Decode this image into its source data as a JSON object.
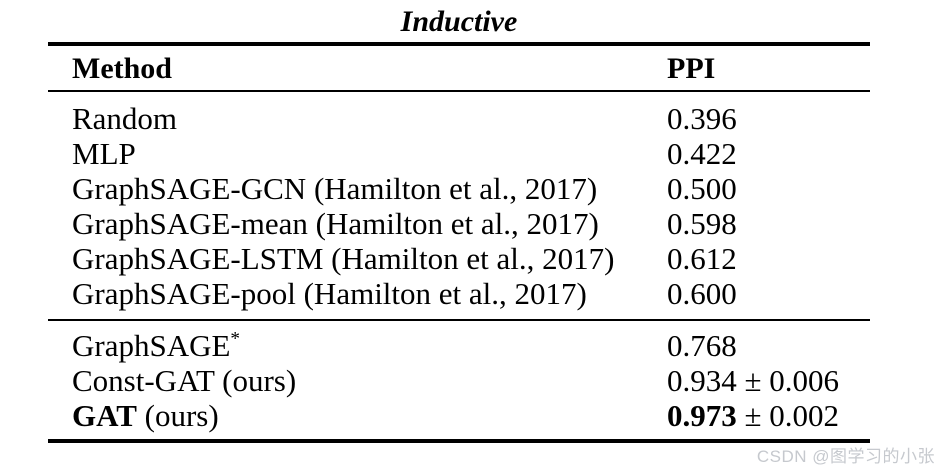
{
  "title": "Inductive",
  "watermark": "CSDN @图学习的小张",
  "colors": {
    "background": "#ffffff",
    "text": "#000000",
    "rule": "#000000",
    "watermark": "#c6c9ce"
  },
  "table": {
    "columns": [
      "Method",
      "PPI"
    ],
    "sections": [
      {
        "name": "baselines",
        "rows": [
          {
            "method_bold": "",
            "method": "Random",
            "method_sup": "",
            "ppi_bold": "",
            "ppi": "0.396"
          },
          {
            "method_bold": "",
            "method": "MLP",
            "method_sup": "",
            "ppi_bold": "",
            "ppi": "0.422"
          },
          {
            "method_bold": "",
            "method": "GraphSAGE-GCN (Hamilton et al., 2017)",
            "method_sup": "",
            "ppi_bold": "",
            "ppi": "0.500"
          },
          {
            "method_bold": "",
            "method": "GraphSAGE-mean (Hamilton et al., 2017)",
            "method_sup": "",
            "ppi_bold": "",
            "ppi": "0.598"
          },
          {
            "method_bold": "",
            "method": "GraphSAGE-LSTM (Hamilton et al., 2017)",
            "method_sup": "",
            "ppi_bold": "",
            "ppi": "0.612"
          },
          {
            "method_bold": "",
            "method": "GraphSAGE-pool (Hamilton et al., 2017)",
            "method_sup": "",
            "ppi_bold": "",
            "ppi": "0.600"
          }
        ]
      },
      {
        "name": "ours",
        "rows": [
          {
            "method_bold": "",
            "method": "GraphSAGE",
            "method_sup": "*",
            "ppi_bold": "",
            "ppi": "0.768"
          },
          {
            "method_bold": "",
            "method": "Const-GAT (ours)",
            "method_sup": "",
            "ppi_bold": "",
            "ppi": "0.934 ± 0.006"
          },
          {
            "method_bold": "GAT",
            "method": " (ours)",
            "method_sup": "",
            "ppi_bold": "0.973",
            "ppi": " ± 0.002"
          }
        ]
      }
    ]
  },
  "chart_data": {
    "type": "table",
    "title": "Inductive",
    "columns": [
      "Method",
      "PPI"
    ],
    "rows": [
      [
        "Random",
        "0.396"
      ],
      [
        "MLP",
        "0.422"
      ],
      [
        "GraphSAGE-GCN (Hamilton et al., 2017)",
        "0.500"
      ],
      [
        "GraphSAGE-mean (Hamilton et al., 2017)",
        "0.598"
      ],
      [
        "GraphSAGE-LSTM (Hamilton et al., 2017)",
        "0.612"
      ],
      [
        "GraphSAGE-pool (Hamilton et al., 2017)",
        "0.600"
      ],
      [
        "GraphSAGE*",
        "0.768"
      ],
      [
        "Const-GAT (ours)",
        "0.934 ± 0.006"
      ],
      [
        "GAT (ours)",
        "0.973 ± 0.002"
      ]
    ]
  }
}
